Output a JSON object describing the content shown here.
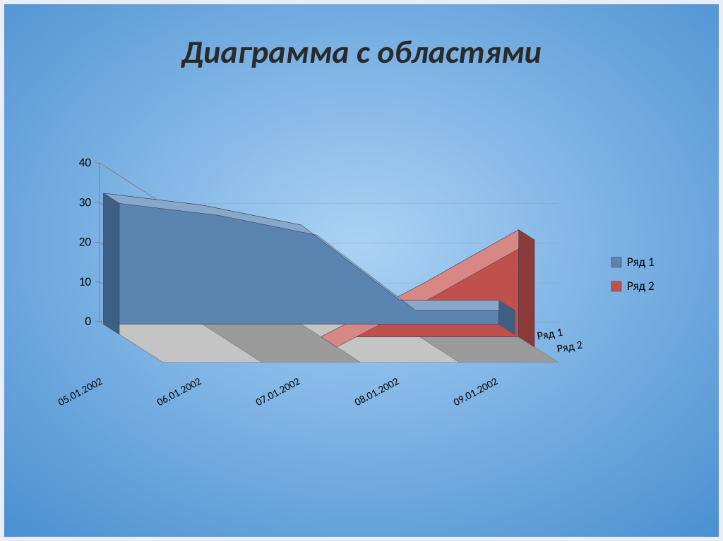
{
  "title": "Диаграмма с областями",
  "title_fontsize": 46,
  "title_fontweight": "bold",
  "title_fontstyle": "italic",
  "title_color": "#2a2a2a",
  "background": {
    "type": "radial-gradient",
    "inner_color": "#aad2f5",
    "outer_color": "#4a8fd0"
  },
  "frame_color": "#e8edf7",
  "chart": {
    "type": "area-3d",
    "categories": [
      "05.01.2002",
      "06.01.2002",
      "07.01.2002",
      "08.01.2002",
      "09.01.2002"
    ],
    "series": [
      {
        "name": "Ряд 1",
        "values": [
          33,
          30,
          25,
          6,
          6
        ],
        "color_front": "#5b84b1",
        "color_top": "#88a8c9",
        "color_side": "#3e5f84"
      },
      {
        "name": "Ряд 2",
        "values": [
          0,
          0,
          0,
          13,
          27
        ],
        "color_front": "#c0504d",
        "color_top": "#d78784",
        "color_side": "#8a3a38"
      }
    ],
    "depth_labels": [
      "Ряд 1",
      "Ряд 2"
    ],
    "y_axis": {
      "min": 0,
      "max": 40,
      "step": 10,
      "ticks": [
        0,
        10,
        20,
        30,
        40
      ],
      "label_fontsize": 17
    },
    "x_axis": {
      "label_fontsize": 15,
      "label_rotation": -28
    },
    "floor_color_light": "#c4c4c4",
    "floor_color_dark": "#9a9a9a",
    "wall_color": "#dcdcdc",
    "gridline_color": "#808080",
    "legend": {
      "items": [
        {
          "label": "Ряд 1",
          "color": "#5b84b1"
        },
        {
          "label": "Ряд 2",
          "color": "#c0504d"
        }
      ],
      "fontsize": 17
    }
  }
}
